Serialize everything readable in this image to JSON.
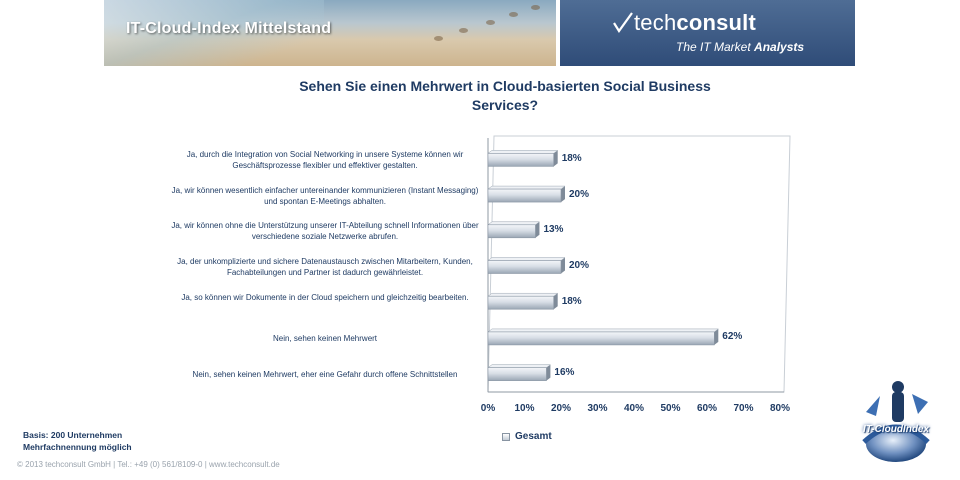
{
  "banner": {
    "left_title": "IT-Cloud-Index Mittelstand",
    "brand_tech": "tech",
    "brand_consult": "consult",
    "tagline_prefix": "The IT Market ",
    "tagline_bold": "Analysts"
  },
  "chart_data": {
    "type": "bar",
    "orientation": "horizontal",
    "title": "Sehen Sie einen Mehrwert in Cloud-basierten Social Business Services?",
    "categories": [
      "Ja, durch die Integration von Social Networking in unsere Systeme können wir Geschäftsprozesse flexibler und effektiver gestalten.",
      "Ja, wir können wesentlich einfacher untereinander kommunizieren (Instant Messaging) und spontan E-Meetings abhalten.",
      "Ja, wir können ohne die Unterstützung unserer IT-Abteilung schnell Informationen über verschiedene soziale Netzwerke abrufen.",
      "Ja, der unkomplizierte und sichere Datenaustausch zwischen Mitarbeitern, Kunden, Fachabteilungen und Partner ist dadurch gewährleistet.",
      "Ja, so können wir Dokumente in der Cloud speichern und gleichzeitig bearbeiten.",
      "Nein, sehen keinen  Mehrwert",
      "Nein, sehen keinen  Mehrwert, eher eine Gefahr durch offene Schnittstellen"
    ],
    "series": [
      {
        "name": "Gesamt",
        "values": [
          18,
          20,
          13,
          20,
          18,
          62,
          16
        ]
      }
    ],
    "value_labels": [
      "18%",
      "20%",
      "13%",
      "20%",
      "18%",
      "62%",
      "16%"
    ],
    "xlim": [
      0,
      80
    ],
    "xticks": [
      "0%",
      "10%",
      "20%",
      "30%",
      "40%",
      "50%",
      "60%",
      "70%",
      "80%"
    ],
    "legend_position": "bottom",
    "grid": false,
    "bar_color": "#c9d2dc"
  },
  "notes": {
    "basis_line1": "Basis: 200 Unternehmen",
    "basis_line2": "Mehrfachnennung möglich"
  },
  "footer": {
    "text": "© 2013 techconsult GmbH   |   Tel.: +49 (0) 561/8109-0   |   www.techconsult.de"
  },
  "badge": {
    "text": "IT-CloudIndex"
  }
}
